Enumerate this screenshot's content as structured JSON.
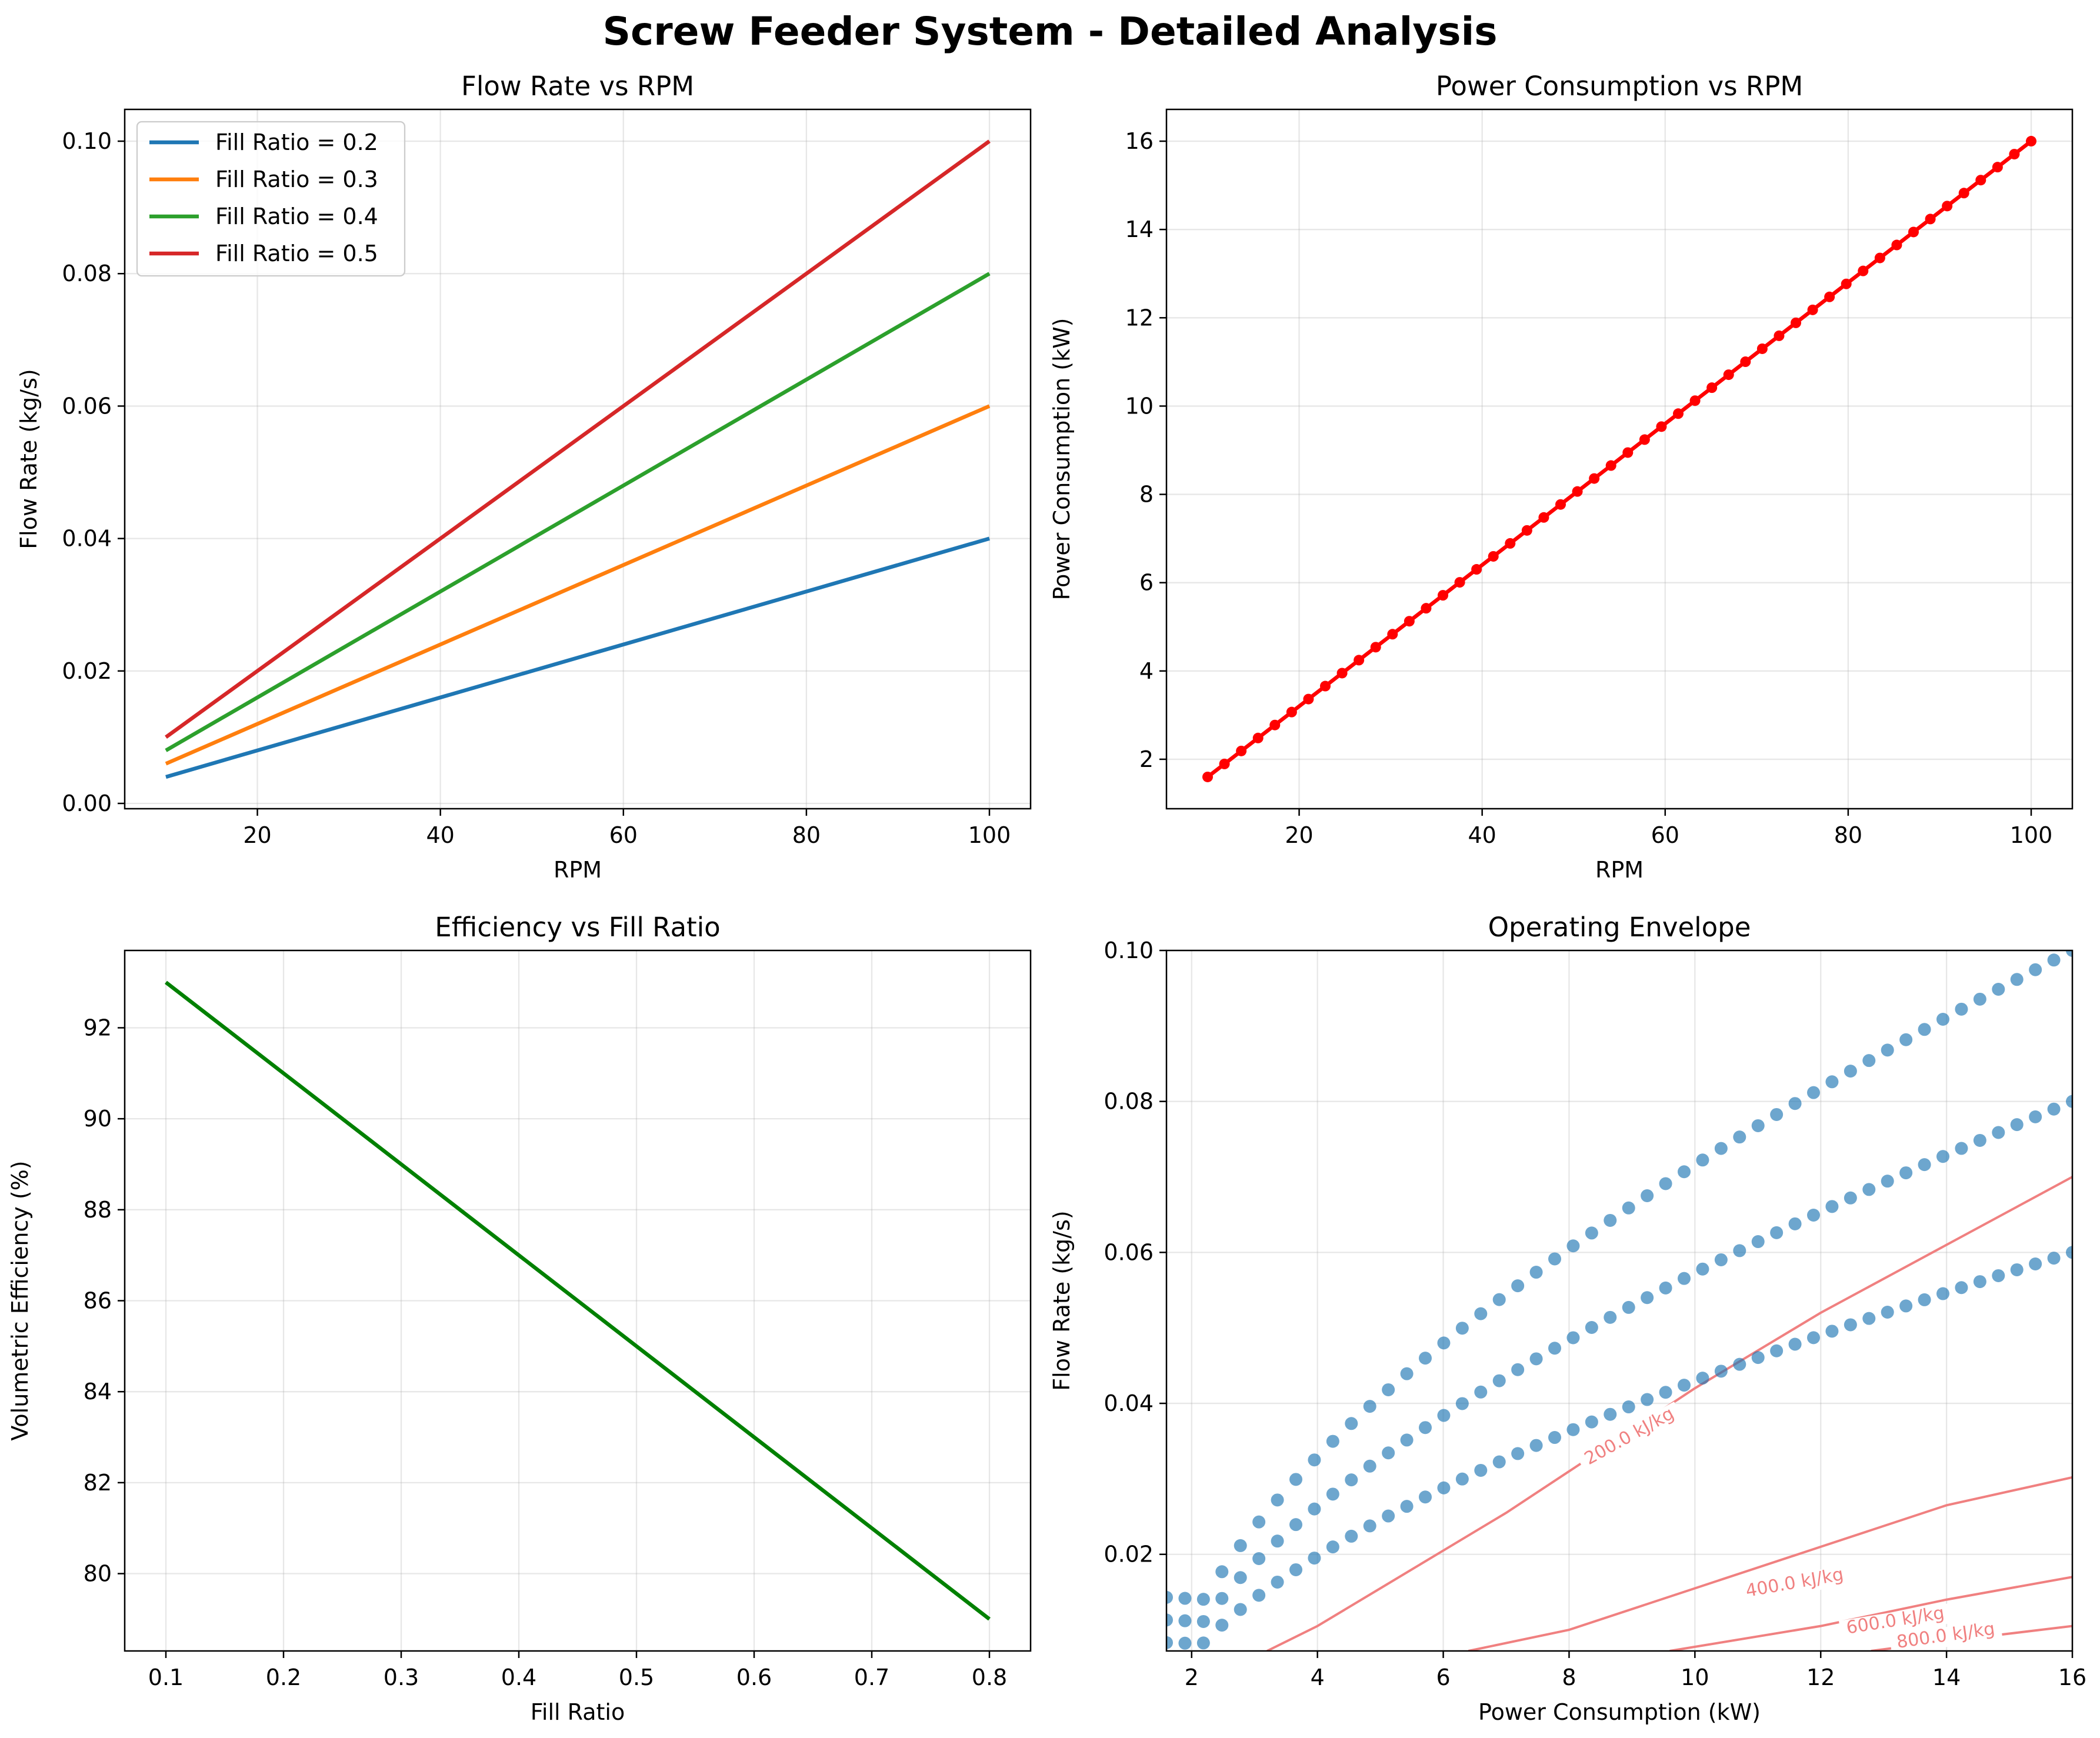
{
  "figure": {
    "title": "Screw Feeder System - Detailed Analysis"
  },
  "chart_data": [
    {
      "type": "line",
      "title": "Flow Rate vs RPM",
      "xlabel": "RPM",
      "ylabel": "Flow Rate (kg/s)",
      "xlim": [
        5.5,
        104.5
      ],
      "ylim": [
        -0.0008,
        0.1048
      ],
      "xticks": [
        "20",
        "40",
        "60",
        "80",
        "100"
      ],
      "yticks": [
        "0.00",
        "0.02",
        "0.04",
        "0.06",
        "0.08",
        "0.10"
      ],
      "grid": true,
      "legend_position": "upper-left",
      "x": [
        10,
        100
      ],
      "series": [
        {
          "name": "Fill Ratio = 0.2",
          "color": "#1f77b4",
          "values": [
            0.004,
            0.04
          ]
        },
        {
          "name": "Fill Ratio = 0.3",
          "color": "#ff7f0e",
          "values": [
            0.006,
            0.06
          ]
        },
        {
          "name": "Fill Ratio = 0.4",
          "color": "#2ca02c",
          "values": [
            0.008,
            0.08
          ]
        },
        {
          "name": "Fill Ratio = 0.5",
          "color": "#d62728",
          "values": [
            0.01,
            0.1
          ]
        }
      ]
    },
    {
      "type": "line",
      "title": "Power Consumption vs RPM",
      "xlabel": "RPM",
      "ylabel": "Power Consumption (kW)",
      "xlim": [
        5.5,
        104.5
      ],
      "ylim": [
        0.88,
        16.72
      ],
      "xticks": [
        "20",
        "40",
        "60",
        "80",
        "100"
      ],
      "yticks": [
        "2",
        "4",
        "6",
        "8",
        "10",
        "12",
        "14",
        "16"
      ],
      "grid": true,
      "marker": "o",
      "color": "#ff0000",
      "x_range": [
        10,
        100
      ],
      "n_points": 50,
      "formula": "P = 1.6 * (RPM/10)^1",
      "y_start": 1.6,
      "y_end": 16.0
    },
    {
      "type": "line",
      "title": "Efficiency vs Fill Ratio",
      "xlabel": "Fill Ratio",
      "ylabel": "Volumetric Efficiency (%)",
      "xlim": [
        0.065,
        0.835
      ],
      "ylim": [
        78.3,
        93.7
      ],
      "xticks": [
        "0.1",
        "0.2",
        "0.3",
        "0.4",
        "0.5",
        "0.6",
        "0.7",
        "0.8"
      ],
      "yticks": [
        "80",
        "82",
        "84",
        "86",
        "88",
        "90",
        "92"
      ],
      "grid": true,
      "color": "#008000",
      "x": [
        0.1,
        0.8
      ],
      "values": [
        93,
        79
      ]
    },
    {
      "type": "scatter",
      "title": "Operating Envelope",
      "xlabel": "Power Consumption (kW)",
      "ylabel": "Flow Rate (kg/s)",
      "xlim": [
        1.6,
        16
      ],
      "ylim": [
        0.0072,
        0.1
      ],
      "xticks": [
        "2",
        "4",
        "6",
        "8",
        "10",
        "12",
        "14",
        "16"
      ],
      "yticks": [
        "0.02",
        "0.04",
        "0.06",
        "0.08",
        "0.10"
      ],
      "grid": true,
      "point_color": "#1f77b4",
      "points_per_series": 50,
      "scatter_series": [
        {
          "flow_at_max": 0.06
        },
        {
          "flow_at_max": 0.08
        },
        {
          "flow_at_max": 0.1
        }
      ],
      "contour_color": "#f08080",
      "contours": [
        {
          "label": "200.0 kJ/kg"
        },
        {
          "label": "400.0 kJ/kg"
        },
        {
          "label": "600.0 kJ/kg"
        },
        {
          "label": "800.0 kJ/kg"
        }
      ]
    }
  ]
}
